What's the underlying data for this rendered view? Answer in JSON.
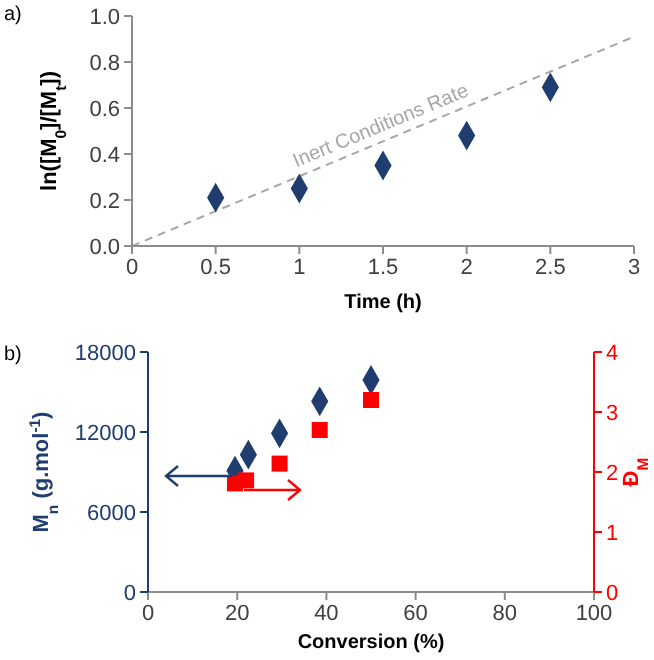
{
  "chart_data": [
    {
      "type": "scatter",
      "xlabel": "Time (h)",
      "ylabel": "ln([M$_{0}$]/[M$_{t}$])",
      "annotations": [
        "a)"
      ],
      "xlim": [
        0,
        3
      ],
      "xticks": [
        0,
        0.5,
        1,
        1.5,
        2,
        2.5,
        3
      ],
      "ylim": [
        0,
        1
      ],
      "yticks": [
        {
          "value": 0,
          "label": "0.0"
        },
        {
          "value": 0.2,
          "label": "0.2"
        },
        {
          "value": 0.4,
          "label": "0.4"
        },
        {
          "value": 0.6,
          "label": "0.6"
        },
        {
          "value": 0.8,
          "label": "0.8"
        },
        {
          "value": 1,
          "label": "1.0"
        }
      ],
      "series": [
        {
          "x": [
            0.5,
            1,
            1.5,
            2,
            2.5
          ],
          "values": [
            0.21,
            0.25,
            0.35,
            0.48,
            0.69
          ],
          "color": "#1f3d6e",
          "marker": "diamond"
        },
        {
          "name": "Inert Conditions Rate",
          "type": "line",
          "x": [
            0,
            3
          ],
          "values": [
            0,
            0.91
          ],
          "color": "#a6a6a6",
          "line_style": "dashed",
          "marker": "none"
        }
      ]
    },
    {
      "type": "scatter",
      "xlabel": "Conversion (%)",
      "ylabel": "M$_{n}$ (g.mol$^{-1}$)",
      "y2label": "Đ$_{M}$",
      "annotations": [
        "b)"
      ],
      "xlim": [
        0,
        100
      ],
      "xticks": [
        0,
        20,
        40,
        60,
        80,
        100
      ],
      "ylim": [
        0,
        18000
      ],
      "yticks": [
        0,
        6000,
        12000,
        18000
      ],
      "y2lim": [
        0,
        4
      ],
      "y2ticks": [
        0,
        1,
        2,
        3,
        4
      ],
      "series": [
        {
          "x": [
            19.5,
            22.5,
            29.5,
            38.5,
            50
          ],
          "values": [
            9100,
            10300,
            11900,
            14300,
            15900
          ],
          "color": "#1f3d6e",
          "marker": "diamond"
        },
        {
          "x": [
            19.5,
            22,
            29.5,
            38.5,
            50
          ],
          "values": [
            1.81,
            1.86,
            2.14,
            2.7,
            3.2
          ],
          "color": "#ff0000",
          "marker": "square",
          "axis": "y2"
        }
      ]
    }
  ]
}
